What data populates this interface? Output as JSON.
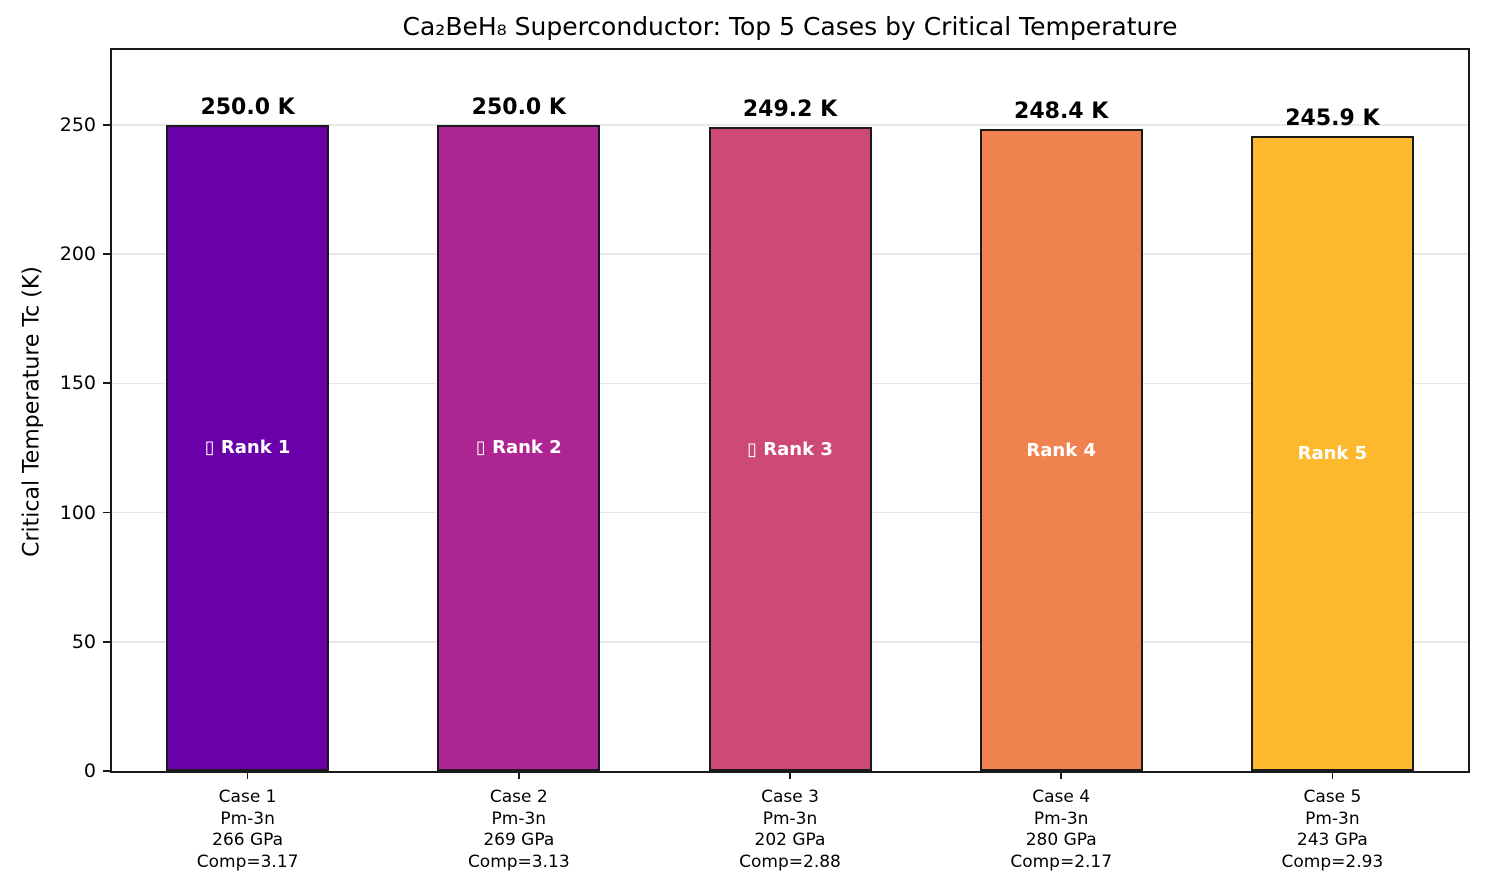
{
  "chart_data": {
    "type": "bar",
    "title": "Ca₂BeH₈ Superconductor: Top 5 Cases by Critical Temperature",
    "xlabel": "",
    "ylabel": "Critical Temperature Tc (K)",
    "ylim": [
      0,
      279
    ],
    "yticks": [
      0,
      50,
      100,
      150,
      200,
      250
    ],
    "grid": true,
    "legend": false,
    "background_color": "#ffffff",
    "bar_edge_color": "#1a1a1a",
    "categories": [
      "Case 1",
      "Case 2",
      "Case 3",
      "Case 4",
      "Case 5"
    ],
    "values": [
      250.0,
      250.0,
      249.2,
      248.4,
      245.9
    ],
    "bars": [
      {
        "category": "Case 1",
        "structure": "Pm-3n",
        "pressure": "266 GPa",
        "composition": "Comp=3.17",
        "value": 250.0,
        "value_label": "250.0 K",
        "rank_label": "▯ Rank 1",
        "color": "#6a00a8"
      },
      {
        "category": "Case 2",
        "structure": "Pm-3n",
        "pressure": "269 GPa",
        "composition": "Comp=3.13",
        "value": 250.0,
        "value_label": "250.0 K",
        "rank_label": "▯ Rank 2",
        "color": "#ad2592"
      },
      {
        "category": "Case 3",
        "structure": "Pm-3n",
        "pressure": "202 GPa",
        "composition": "Comp=2.88",
        "value": 249.2,
        "value_label": "249.2 K",
        "rank_label": "▯ Rank 3",
        "color": "#cc4a74"
      },
      {
        "category": "Case 4",
        "structure": "Pm-3n",
        "pressure": "280 GPa",
        "composition": "Comp=2.17",
        "value": 248.4,
        "value_label": "248.4 K",
        "rank_label": "Rank 4",
        "color": "#f0824f"
      },
      {
        "category": "Case 5",
        "structure": "Pm-3n",
        "pressure": "243 GPa",
        "composition": "Comp=2.93",
        "value": 245.9,
        "value_label": "245.9 K",
        "rank_label": "Rank 5",
        "color": "#fdb92e"
      }
    ]
  }
}
